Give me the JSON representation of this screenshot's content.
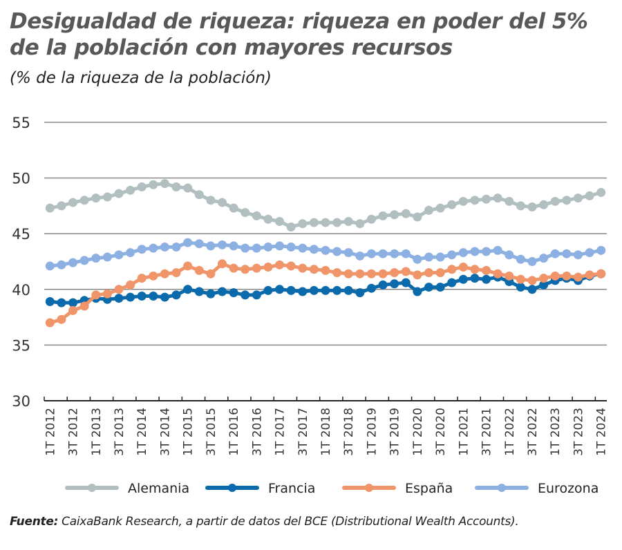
{
  "title": "Desigualdad de riqueza: riqueza en poder del 5% de la población con mayores recursos",
  "title_lines": [
    "Desigualdad de riqueza: riqueza en poder del 5%",
    "de la población con mayores recursos"
  ],
  "subtitle": "(% de la riqueza de la población)",
  "source_label": "Fuente:",
  "source_text": " CaixaBank Research, a partir de datos del BCE (Distributional Wealth Accounts).",
  "chart_data": {
    "type": "line",
    "title": "Desigualdad de riqueza: riqueza en poder del 5% de la población con mayores recursos",
    "subtitle": "(% de la riqueza de la población)",
    "ylim": [
      30,
      55
    ],
    "yticks": [
      30,
      35,
      40,
      45,
      50,
      55
    ],
    "grid": true,
    "legend": "bottom",
    "x_tick_labels": [
      "1T 2012",
      "3T 2012",
      "1T 2013",
      "3T 2013",
      "1T 2014",
      "3T 2014",
      "1T 2015",
      "3T 2015",
      "1T 2016",
      "3T 2016",
      "1T 2017",
      "3T 2017",
      "1T 2018",
      "3T 2018",
      "1T 2019",
      "3T 2019",
      "1T 2020",
      "3T 2020",
      "1T 2021",
      "3T 2021",
      "1T 2022",
      "3T 2022",
      "1T 2023",
      "3T 2023",
      "1T 2024"
    ],
    "x_range": [
      "1T 2012",
      "1T 2024"
    ],
    "x_step": "quarter",
    "series": [
      {
        "name": "Alemania",
        "color": "#b2bfc0",
        "values": [
          47.3,
          47.5,
          47.8,
          48.0,
          48.2,
          48.3,
          48.6,
          48.9,
          49.2,
          49.4,
          49.5,
          49.2,
          49.1,
          48.5,
          48.0,
          47.8,
          47.3,
          46.9,
          46.6,
          46.3,
          46.1,
          45.6,
          45.9,
          46.0,
          46.0,
          46.0,
          46.1,
          45.9,
          46.3,
          46.6,
          46.7,
          46.8,
          46.5,
          47.1,
          47.3,
          47.6,
          47.9,
          48.0,
          48.1,
          48.2,
          47.9,
          47.5,
          47.4,
          47.6,
          47.9,
          48.0,
          48.2,
          48.4,
          48.7
        ]
      },
      {
        "name": "Francia",
        "color": "#0a6aac",
        "values": [
          38.9,
          38.8,
          38.8,
          39.0,
          39.2,
          39.1,
          39.2,
          39.3,
          39.4,
          39.4,
          39.3,
          39.5,
          40.0,
          39.8,
          39.6,
          39.8,
          39.7,
          39.5,
          39.5,
          39.9,
          40.0,
          39.9,
          39.8,
          39.9,
          39.9,
          39.9,
          39.9,
          39.7,
          40.1,
          40.4,
          40.5,
          40.6,
          39.8,
          40.2,
          40.2,
          40.6,
          40.9,
          41.0,
          40.9,
          41.1,
          40.7,
          40.2,
          40.0,
          40.4,
          40.8,
          41.0,
          40.8,
          41.2,
          41.4
        ]
      },
      {
        "name": "España",
        "color": "#f0956a",
        "values": [
          37.0,
          37.3,
          38.1,
          38.5,
          39.5,
          39.6,
          40.0,
          40.4,
          41.0,
          41.2,
          41.4,
          41.5,
          42.1,
          41.7,
          41.4,
          42.3,
          41.9,
          41.8,
          41.9,
          42.0,
          42.2,
          42.1,
          41.9,
          41.8,
          41.7,
          41.5,
          41.4,
          41.4,
          41.4,
          41.4,
          41.5,
          41.6,
          41.3,
          41.5,
          41.5,
          41.8,
          42.0,
          41.8,
          41.7,
          41.4,
          41.2,
          40.9,
          40.8,
          41.0,
          41.2,
          41.2,
          41.1,
          41.3,
          41.4
        ]
      },
      {
        "name": "Eurozona",
        "color": "#8cb0e2",
        "values": [
          42.1,
          42.2,
          42.4,
          42.6,
          42.8,
          42.9,
          43.1,
          43.3,
          43.6,
          43.7,
          43.8,
          43.8,
          44.2,
          44.1,
          43.9,
          44.0,
          43.9,
          43.7,
          43.7,
          43.8,
          43.9,
          43.8,
          43.7,
          43.6,
          43.5,
          43.4,
          43.3,
          43.0,
          43.2,
          43.2,
          43.2,
          43.2,
          42.7,
          42.9,
          42.9,
          43.1,
          43.3,
          43.4,
          43.4,
          43.5,
          43.1,
          42.7,
          42.5,
          42.8,
          43.2,
          43.2,
          43.1,
          43.3,
          43.5
        ]
      }
    ]
  }
}
